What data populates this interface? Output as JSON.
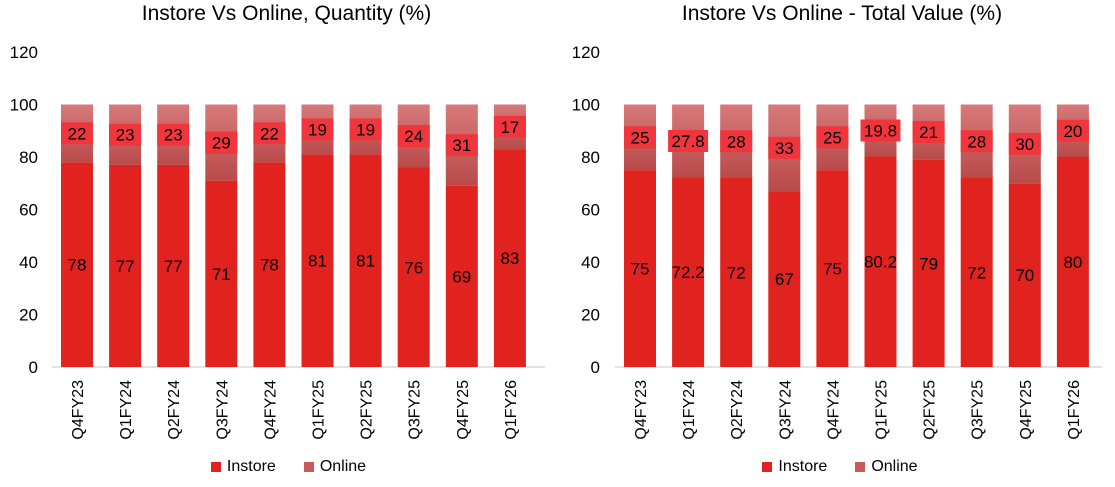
{
  "chart_data": [
    {
      "type": "bar",
      "stacked": true,
      "title": "Instore Vs Online, Quantity (%)",
      "categories": [
        "Q4FY23",
        "Q1FY24",
        "Q2FY24",
        "Q3FY24",
        "Q4FY24",
        "Q1FY25",
        "Q2FY25",
        "Q3FY25",
        "Q4FY25",
        "Q1FY26"
      ],
      "series": [
        {
          "name": "Instore",
          "values": [
            78,
            77,
            77,
            71,
            78,
            81,
            81,
            76,
            69,
            83
          ],
          "labels": [
            "78",
            "77",
            "77",
            "71",
            "78",
            "81",
            "81",
            "76",
            "69",
            "83"
          ]
        },
        {
          "name": "Online",
          "values": [
            22,
            23,
            23,
            29,
            22,
            19,
            19,
            24,
            31,
            17
          ],
          "labels": [
            "22",
            "23",
            "23",
            "29",
            "22",
            "19",
            "19",
            "24",
            "31",
            "17"
          ]
        }
      ],
      "yticks": [
        "0",
        "20",
        "40",
        "60",
        "80",
        "100",
        "120"
      ],
      "ylim": [
        0,
        120
      ],
      "xlabel": "",
      "ylabel": "",
      "legend": "bottom"
    },
    {
      "type": "bar",
      "stacked": true,
      "title": "Instore Vs Online - Total Value (%)",
      "categories": [
        "Q4FY23",
        "Q1FY24",
        "Q2FY24",
        "Q3FY24",
        "Q4FY24",
        "Q1FY25",
        "Q2FY25",
        "Q3FY25",
        "Q4FY25",
        "Q1FY26"
      ],
      "series": [
        {
          "name": "Instore",
          "values": [
            75,
            72.2,
            72,
            67,
            75,
            80.2,
            79,
            72,
            70,
            80
          ],
          "labels": [
            "75",
            "72.2",
            "72",
            "67",
            "75",
            "80.2",
            "79",
            "72",
            "70",
            "80"
          ]
        },
        {
          "name": "Online",
          "values": [
            25,
            27.8,
            28,
            33,
            25,
            19.8,
            21,
            28,
            30,
            20
          ],
          "labels": [
            "25",
            "27.8",
            "28",
            "33",
            "25",
            "19.8",
            "21",
            "28",
            "30",
            "20"
          ]
        }
      ],
      "yticks": [
        "0",
        "20",
        "40",
        "60",
        "80",
        "100",
        "120"
      ],
      "ylim": [
        0,
        120
      ],
      "xlabel": "",
      "ylabel": "",
      "legend": "bottom"
    }
  ],
  "colors": {
    "instore": "#e0231f",
    "online": "#c85a5a",
    "online_label_box": "#f0353d",
    "axis": "#d9d9d9",
    "text": "#000000"
  }
}
